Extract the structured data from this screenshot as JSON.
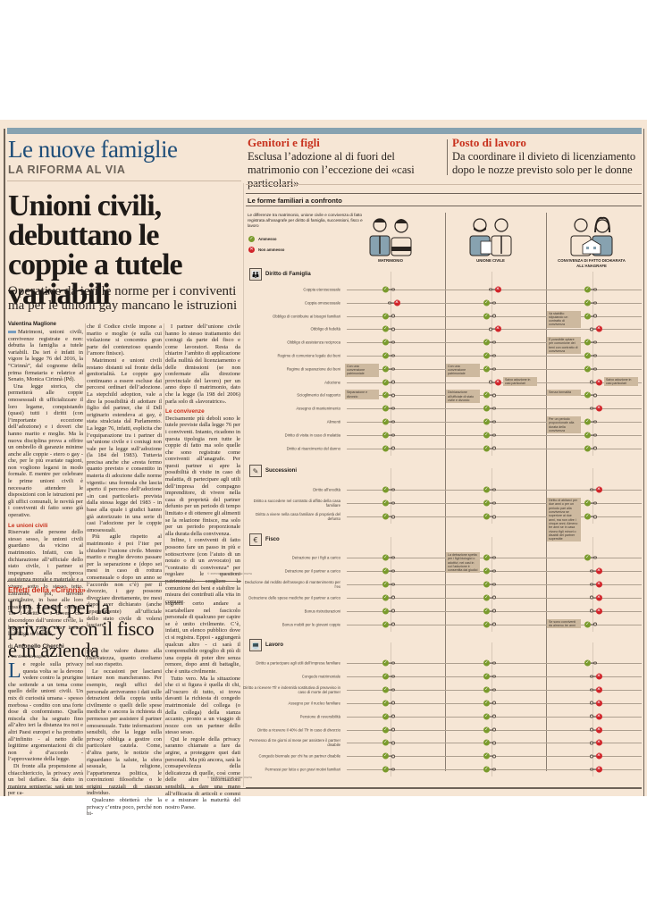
{
  "section": {
    "title": "Le nuove famiglie",
    "subtitle": "LA RIFORMA AL VIA"
  },
  "teasers": [
    {
      "kicker": "Genitori e figli",
      "text": "Esclusa l’adozione al di fuori del matrimonio con l’eccezione dei «casi particolari»"
    },
    {
      "kicker": "Posto di lavoro",
      "text": "Da coordinare il divieto di licenziamento dopo le nozze previsto solo per le donne"
    }
  ],
  "article1": {
    "headline": "Unioni civili, debuttano le coppie a tutele variabili",
    "subheadline": "Operative da ieri le norme per i conviventi ma per le unioni gay mancano le istruzioni",
    "author": "Valentina Maglione",
    "col1": [
      "Matrimoni, unioni civili, convivenze registrate e non: debutta la famiglia a tutele variabili. Da ieri è infatti in vigore la legge 76 del 2016, la “Cirinnà”, dal cognome della prima firmataria e relatrice al Senato, Monica Cirinnà (Pd).",
      "Una legge storica, che permetterà alle coppie omosessuali di ufficializzare il loro legame, conquistando (quasi) tutti i diritti (con l’importante eccezione dell’adozione) e i doveri che hanno marito e moglie. Ma la nuova disciplina prova a offrire un ombrello di garanzie minime anche alle coppie - etero o gay - che, per le più svariate ragioni, non vogliono legarsi in modo formale. E mentre per celebrare le prime unioni civili è necessario attendere le disposizioni con le istruzioni per gli uffici comunali, le novità per i conviventi di fatto sono già operative."
    ],
    "col1_subhead": "Le unioni civili",
    "col1b": [
      "Riservate alle persone dello stesso sesso, le unioni civili guardano da vicino al matrimonio. Infatti, con la dichiarazione all’ufficiale dello stato civile, i partner si impegnano alla reciproca assistenza morale e materiale e a vivere sotto lo stesso tetto. Entrambi, poi, devono contribuire, in base alle loro possibilità, ai bisogni comuni. Tra i diritti e i doveri che discendono dall’unione civile, la legge 76 non cita invece l’obbligo di fedeltà,"
    ],
    "col2": [
      "che il Codice civile impone a marito e moglie (e sulla cui violazione si concentra gran parte del contenzioso quando l’amore finisce).",
      "Matrimoni e unioni civili restano distanti sul fronte della genitorialità. Le coppie gay continuano a essere escluse dai percorsi ordinari dell’adozione. La stepchild adoption, vale a dire la possibilità di adottare il figlio del partner, che il Ddl originario estendeva ai gay, è stata stralciata dal Parlamento. La legge 76, infatti, esplicita che l’equiparazione tra i partner di un’unione civile e i coniugi non vale per la legge sull’adozione (la 184 del 1983). Tuttavia precisa anche che «resta fermo quanto previsto e consentito in materia di adozione dalle norme vigenti»: una formula che lascia aperto il percorso dell’adozione «in casi particolari» prevista dalla stessa legge del 1983 - in base alla quale i giudici hanno già autorizzato in una serie di casi l’adozione per le coppie omosessuali.",
      "Più agile rispetto al matrimonio è poi l’iter per chiudere l’unione civile. Mentre marito e moglie devono passare per la separazione e (dopo sei mesi in caso di rottura consensuale o dopo un anno se l’accordo non c’è) per il divorzio, i gay possono divorziare direttamente, tre mesi dopo aver dichiarato (anche separatamente) all’ufficiale dello stato civile di volersi lasciare."
    ],
    "col3": [
      "I partner dell’unione civile hanno lo stesso trattamento dei coniugi da parte del fisco e come lavoratori. Resta da chiarire l’ambito di applicazione della nullità del licenziamento e delle dimissioni (se non confermate alla direzione provinciale del lavoro) per un anno dopo il matrimonio, dato che la legge (la 198 del 2006) parla solo di «lavoratrice»."
    ],
    "col3_subhead": "Le convivenze",
    "col3b": [
      "Decisamente più deboli sono le tutele previste dalla legge 76 per i conviventi. Intanto, ricadono in questa tipologia non tutte le coppie di fatto ma solo quelle che sono registrate come conviventi all’anagrafe. Per questi partner si apre la possibilità di visite in caso di malattia, di partecipare agli utili dell’impresa del compagno imprenditore, di vivere nella casa di proprietà del partner defunto per un periodo di tempo limitato e di ottenere gli alimenti se la relazione finisce, ma solo per un periodo proporzionale alla durata della convivenza.",
      "Infine, i conviventi di fatto possono fare un passo in più e sottoscrivere (con l’aiuto di un notaio o di un avvocato) un “contratto di convivenza” per regolare le questioni patrimoniali: scegliere la comunione dei beni e stabilire la misura dei contributi alla vita in comune."
    ],
    "copyright": "© RIPRODUZIONE RISERVATA"
  },
  "article2": {
    "kicker": "Effetti della «Cirinnà»",
    "headline": "Un test per la privacy con il fisco e in azienda",
    "author_prefix": "di",
    "author": "Antonello Cherchi",
    "continued": "▸ Continua da pagina 1",
    "dropcap": "L",
    "col1": [
      "e regole sulla privacy questa volta se la devono vedere contro la pruriginе che sottende a un tema come quello delle unioni civili. Un mix di curiosità umana - spesso morbosa - condito con una forte dose di conformismo. Quella miscela che ha segnato fino all’altro ieri la distanza tra noi e altri Paesi europei e ha protratto all’infinito - al netto delle legittime argomentazioni di chi non è d’accordo - l’approvazione della legge.",
      "Di fronte alla propensione al chiacchiericcio, la privacy avrà un bel daffare. Sia detto in maniera semiseria: sarà un test per ca-"
    ],
    "col2": [
      "pire che valore diamo alla riservatezza, quanto crediamo nel suo rispetto.",
      "Le occasioni per lasciarsi tentare non mancheranno. Per esempio, negli uffici del personale arriveranno i dati sulle detrazioni della coppia unita civilmente o quelli delle spese mediche o ancora la richiesta di permesso per assistere il partner omosessuale. Tutte informazioni sensibili, che la legge sulla privacy obbliga a gestire con particolare cautela. Come, d’altra parte, le notizie che riguardano la salute, la sfera sessuale, la religione, l’appartenenza politica, le convinzioni filosofiche o le origini razziali di ciascun individuo.",
      "Qualcuno obietterà che la privacy c’entra poco, perché non bi-"
    ],
    "col3": [
      "sognerà certo andare a scartabellare nel fascicolo personale di qualcuno per capire se è unito civilmente. C’è, infatti, un elenco pubblico dove ci si registra. Eppoi - aggiungerà qualcun altro - ci sarà il comprensibile orgoglio di più di una coppia di poter dire senza remore, dopo anni di battaglie, che è unita civilmente.",
      "Tutto vero. Ma la situazione che ci si figura è quella di chi, all’oscuro di tutto, si trova davanti la richiesta di congedo matrimoniale del collega (o della collega) della stanza accanto, pronto a un viaggio di nozze con un partner dello stesso sesso.",
      "Qui le regole della privacy saranno chiamate a fare da argine, a proteggere quei dati personali. Ma più ancora, sarà la consapevolezza della delicatezza di quelle, così come delle altre informazioni sensibili, a dare una mano all’efficacia di articoli e commi e a misurare la maturità del nostro Paese."
    ],
    "copyright": "© RIPRODUZIONE RISERVATA"
  },
  "infographic": {
    "title": "Le forme familiari a confronto",
    "intro": "Le differenze tra matrimonio, unione civile e convivenza di fatto registrata all’anagrafe per diritto di famiglia, successioni, fisco e lavoro",
    "legend": [
      {
        "status": "ok",
        "label": "Ammesso",
        "symbol": "✓",
        "color": "#7a9b2d"
      },
      {
        "status": "no",
        "label": "Non ammesso",
        "symbol": "✕",
        "color": "#d1242a"
      }
    ],
    "columns": [
      "MATRIMONIO",
      "UNIONE CIVILE",
      "CONVIVENZA DI FATTO DICHIARATA ALL’ANAGRAFE"
    ],
    "categories": [
      {
        "name": "Diritto di Famiglia",
        "icon": "family-icon",
        "glyph": "👪",
        "rows": [
          {
            "label": "Coppia eterosessuale",
            "values": [
              "ok",
              "no",
              "ok"
            ]
          },
          {
            "label": "Coppia omosessuale",
            "values": [
              "no",
              "ok",
              "ok"
            ]
          },
          {
            "label": "Obbligo di contribuire ai bisogni familiari",
            "values": [
              "ok",
              "ok",
              "ok"
            ],
            "notes": [
              null,
              null,
              "Va stabilito stipulando un contratto di convivenza"
            ]
          },
          {
            "label": "Obbligo di fedeltà",
            "values": [
              "ok",
              "no",
              "no"
            ]
          },
          {
            "label": "Obbligo di assistenza reciproca",
            "values": [
              "ok",
              "ok",
              "ok"
            ],
            "notes": [
              null,
              null,
              "È possibile optare per comunione dei beni con contratto di convivenza"
            ]
          },
          {
            "label": "Regime di comunione legale dei beni",
            "values": [
              "ok",
              "ok",
              "ok"
            ]
          },
          {
            "label": "Regime di separazione dei beni",
            "values": [
              "ok",
              "ok",
              "ok"
            ],
            "notes": [
              "Con una convenzione patrimoniale",
              "Con una convenzione patrimoniale",
              null
            ]
          },
          {
            "label": "Adozione",
            "values": [
              "ok",
              "no",
              "no"
            ],
            "notes": [
              null,
              "Salvo adozione in casi particolari",
              "Salvo adozione in casi particolari"
            ]
          },
          {
            "label": "Scioglimento del rapporto",
            "values": [
              "ok",
              "ok",
              "ok"
            ],
            "notes": [
              "Separazione e divorzio",
              "Dichiarazione all’ufficiale di stato civile e divorzio",
              "Senza formalità"
            ]
          },
          {
            "label": "Assegno di mantenimento",
            "values": [
              "ok",
              "ok",
              "no"
            ]
          },
          {
            "label": "Alimenti",
            "values": [
              "ok",
              "ok",
              "ok"
            ],
            "notes": [
              null,
              null,
              "Per un periodo proporzionale alla durata della convivenza"
            ]
          },
          {
            "label": "Diritto di visita in caso di malattia",
            "values": [
              "ok",
              "ok",
              "ok"
            ]
          },
          {
            "label": "Diritto al risarcimento del danno",
            "values": [
              "ok",
              "ok",
              "ok"
            ]
          }
        ]
      },
      {
        "name": "Successioni",
        "icon": "testament-icon",
        "glyph": "✎",
        "rows": [
          {
            "label": "Diritto all’eredità",
            "values": [
              "ok",
              "ok",
              "no"
            ]
          },
          {
            "label": "Diritto a succedere nel contratto di affitto della casa familiare",
            "values": [
              "ok",
              "ok",
              "ok"
            ],
            "notes": [
              null,
              null,
              "Diritto di abitarci per due anni o per un periodo pari alla convivenza se superiore ai due anni, ma non oltre i cinque anni. Almeno tre anni se in casa vivono figli minori o disabili del partner superstite"
            ]
          },
          {
            "label": "Diritto a vivere nella casa familiare di proprietà del defunto",
            "values": [
              "ok",
              "ok",
              "ok"
            ]
          }
        ]
      },
      {
        "name": "Fisco",
        "icon": "money-icon",
        "glyph": "€",
        "rows": [
          {
            "label": "Detrazione per i figli a carico",
            "values": [
              "ok",
              "ok",
              "ok"
            ],
            "notes": [
              null,
              "La detrazione spetta per i figli biologici o adottivi, nei casi in cui l’adozione è consentita dai giudici",
              null
            ]
          },
          {
            "label": "Detrazione per il partner a carico",
            "values": [
              "ok",
              "ok",
              "no"
            ]
          },
          {
            "label": "Deduzione dal reddito dell’assegno di mantenimento per l’ex",
            "values": [
              "ok",
              "ok",
              "no"
            ]
          },
          {
            "label": "Detrazione delle spese mediche per il partner a carico",
            "values": [
              "ok",
              "ok",
              "no"
            ]
          },
          {
            "label": "Bonus ristrutturazioni",
            "values": [
              "ok",
              "ok",
              "no"
            ]
          },
          {
            "label": "Bonus mobili per le giovani coppie",
            "values": [
              "ok",
              "ok",
              "ok"
            ],
            "notes": [
              null,
              null,
              "Se sono conviventi da almeno tre anni"
            ]
          }
        ]
      },
      {
        "name": "Lavoro",
        "icon": "laptop-icon",
        "glyph": "💻",
        "rows": [
          {
            "label": "Diritto a partecipare agli utili dell’impresa familiare",
            "values": [
              "ok",
              "ok",
              "ok"
            ]
          },
          {
            "label": "Congedo matrimoniale",
            "values": [
              "ok",
              "ok",
              "no"
            ]
          },
          {
            "label": "Diritto a ricevere Tfr e indennità sostitutiva di preavviso in caso di morte del partner",
            "values": [
              "ok",
              "ok",
              "no"
            ]
          },
          {
            "label": "Assegno per il nucleo familiare",
            "values": [
              "ok",
              "ok",
              "no"
            ]
          },
          {
            "label": "Pensione di reversibilità",
            "values": [
              "ok",
              "ok",
              "no"
            ]
          },
          {
            "label": "Diritto a ricevere il 40% del Tfr in caso di divorzio",
            "values": [
              "ok",
              "ok",
              "no"
            ]
          },
          {
            "label": "Permesso di tre giorni al mese per assistere il partner disabile",
            "values": [
              "ok",
              "ok",
              "no"
            ]
          },
          {
            "label": "Congedo biennale per chi ha un partner disabile",
            "values": [
              "ok",
              "ok",
              "no"
            ]
          },
          {
            "label": "Permessi per lutto e per gravi motivi familiari",
            "values": [
              "ok",
              "ok",
              "no"
            ]
          }
        ]
      }
    ]
  },
  "colors": {
    "paper": "#f6e6d5",
    "accent_blue": "#1f4e79",
    "accent_red": "#c8321e",
    "ok_green": "#7a9b2d",
    "no_red": "#d1242a",
    "note_bg": "#cdb99f",
    "bar_blue": "#87a2b0"
  }
}
